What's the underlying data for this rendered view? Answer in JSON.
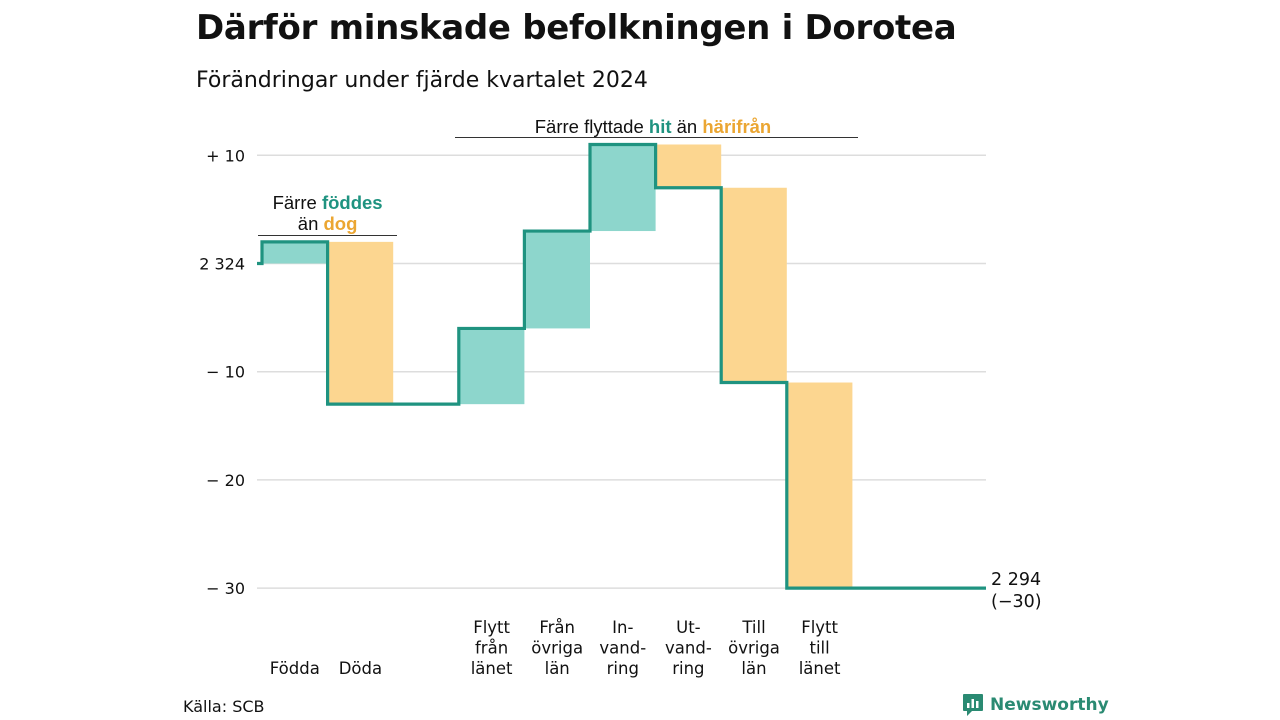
{
  "header": {
    "title": "Därför minskade befolkningen i Dorotea",
    "subtitle": "Förändringar under fjärde kvartalet 2024"
  },
  "footer": {
    "source": "Källa: SCB",
    "brand": "Newsworthy"
  },
  "colors": {
    "line": "#1f9380",
    "increase": "#8dd6cc",
    "decrease": "#fcd690",
    "teal_text": "#1f9380",
    "orange_text": "#eba632",
    "grid": "#dddddd"
  },
  "chart_data": {
    "type": "waterfall",
    "start_value": 2324,
    "start_label": "2 324",
    "end_value": 2294,
    "end_label": "2 294",
    "end_change_label": "(−30)",
    "ylim": [
      -32,
      12
    ],
    "y_ticks": [
      {
        "value": 10,
        "label": "+ 10"
      },
      {
        "value": 0,
        "label": "2 324"
      },
      {
        "value": -10,
        "label": "− 10"
      },
      {
        "value": -20,
        "label": "− 20"
      },
      {
        "value": -30,
        "label": "− 30"
      }
    ],
    "steps": [
      {
        "label": [
          "Födda"
        ],
        "delta": 2,
        "kind": "increase"
      },
      {
        "label": [
          "Döda"
        ],
        "delta": -15,
        "kind": "decrease"
      },
      {
        "label": [
          "Flytt",
          "från",
          "länet"
        ],
        "delta": 7,
        "kind": "increase"
      },
      {
        "label": [
          "Från",
          "övriga",
          "län"
        ],
        "delta": 9,
        "kind": "increase"
      },
      {
        "label": [
          "In-",
          "vand-",
          "ring"
        ],
        "delta": 8,
        "kind": "increase"
      },
      {
        "label": [
          "Ut-",
          "vand-",
          "ring"
        ],
        "delta": -4,
        "kind": "decrease"
      },
      {
        "label": [
          "Till",
          "övriga",
          "län"
        ],
        "delta": -18,
        "kind": "decrease"
      },
      {
        "label": [
          "Flytt",
          "till",
          "länet"
        ],
        "delta": -19,
        "kind": "decrease"
      }
    ],
    "annotations": [
      {
        "text": [
          "Färre ",
          "födde",
          "s"
        ],
        "text2": [
          "än ",
          "dog"
        ]
      },
      {
        "text": [
          "Färre flyttade ",
          "hit",
          " än ",
          "härifrån"
        ]
      }
    ]
  }
}
